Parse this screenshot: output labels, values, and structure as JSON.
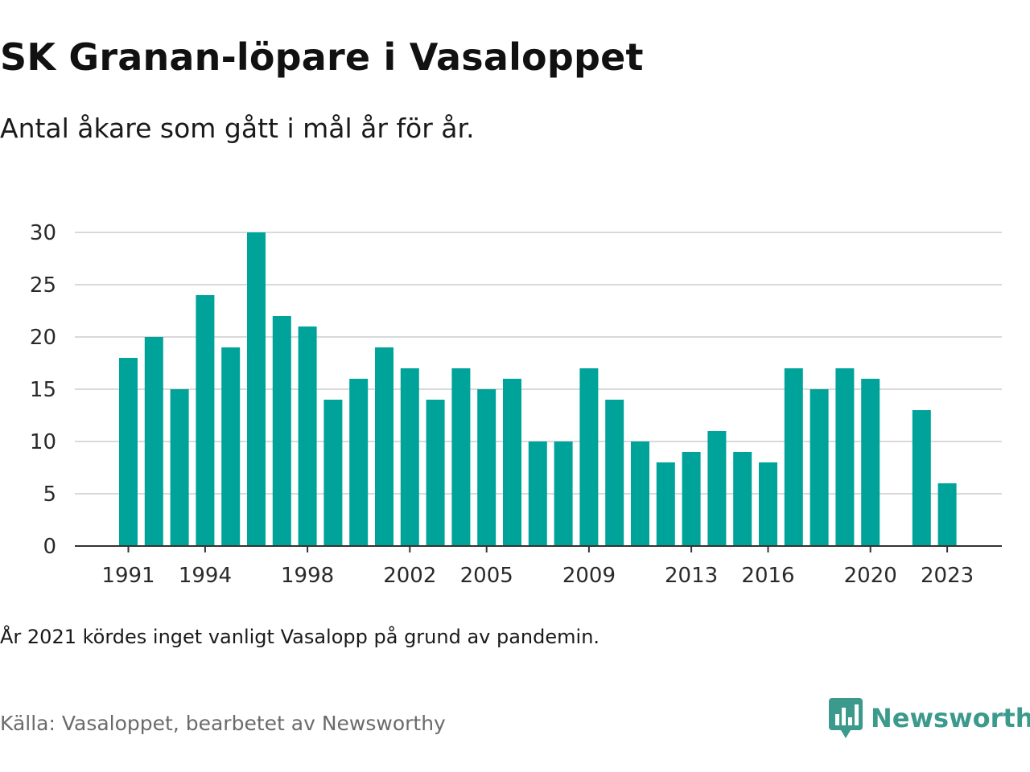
{
  "header": {
    "title": "SK Granan-löpare i Vasaloppet",
    "subtitle": "Antal åkare som gått i mål år för år."
  },
  "footer": {
    "note": "År 2021 kördes inget vanligt Vasalopp på grund av pandemin.",
    "source": "Källa: Vasaloppet, bearbetet av Newsworthy",
    "brand": "Newsworthy",
    "brand_icon": "newsworthy-logo-icon"
  },
  "colors": {
    "bar": "#00a39a",
    "grid": "#d9d9d9",
    "axis": "#333333",
    "brand": "#3b9a8c"
  },
  "chart_data": {
    "type": "bar",
    "title": "SK Granan-löpare i Vasaloppet",
    "subtitle": "Antal åkare som gått i mål år för år.",
    "xlabel": "",
    "ylabel": "",
    "categories": [
      1991,
      1992,
      1993,
      1994,
      1995,
      1996,
      1997,
      1998,
      1999,
      2000,
      2001,
      2002,
      2003,
      2004,
      2005,
      2006,
      2007,
      2008,
      2009,
      2010,
      2011,
      2012,
      2013,
      2014,
      2015,
      2016,
      2017,
      2018,
      2019,
      2020,
      2021,
      2022,
      2023
    ],
    "values": [
      18,
      20,
      15,
      24,
      19,
      30,
      22,
      21,
      14,
      16,
      19,
      17,
      14,
      17,
      15,
      16,
      10,
      10,
      17,
      14,
      10,
      8,
      9,
      11,
      9,
      8,
      17,
      15,
      17,
      16,
      null,
      13,
      6
    ],
    "x_tick_labels": [
      "1991",
      "1994",
      "1998",
      "2002",
      "2005",
      "2009",
      "2013",
      "2016",
      "2020",
      "2023"
    ],
    "y_ticks": [
      0,
      5,
      10,
      15,
      20,
      25,
      30
    ],
    "ylim": [
      0,
      30
    ],
    "grid": true,
    "legend": "none"
  }
}
